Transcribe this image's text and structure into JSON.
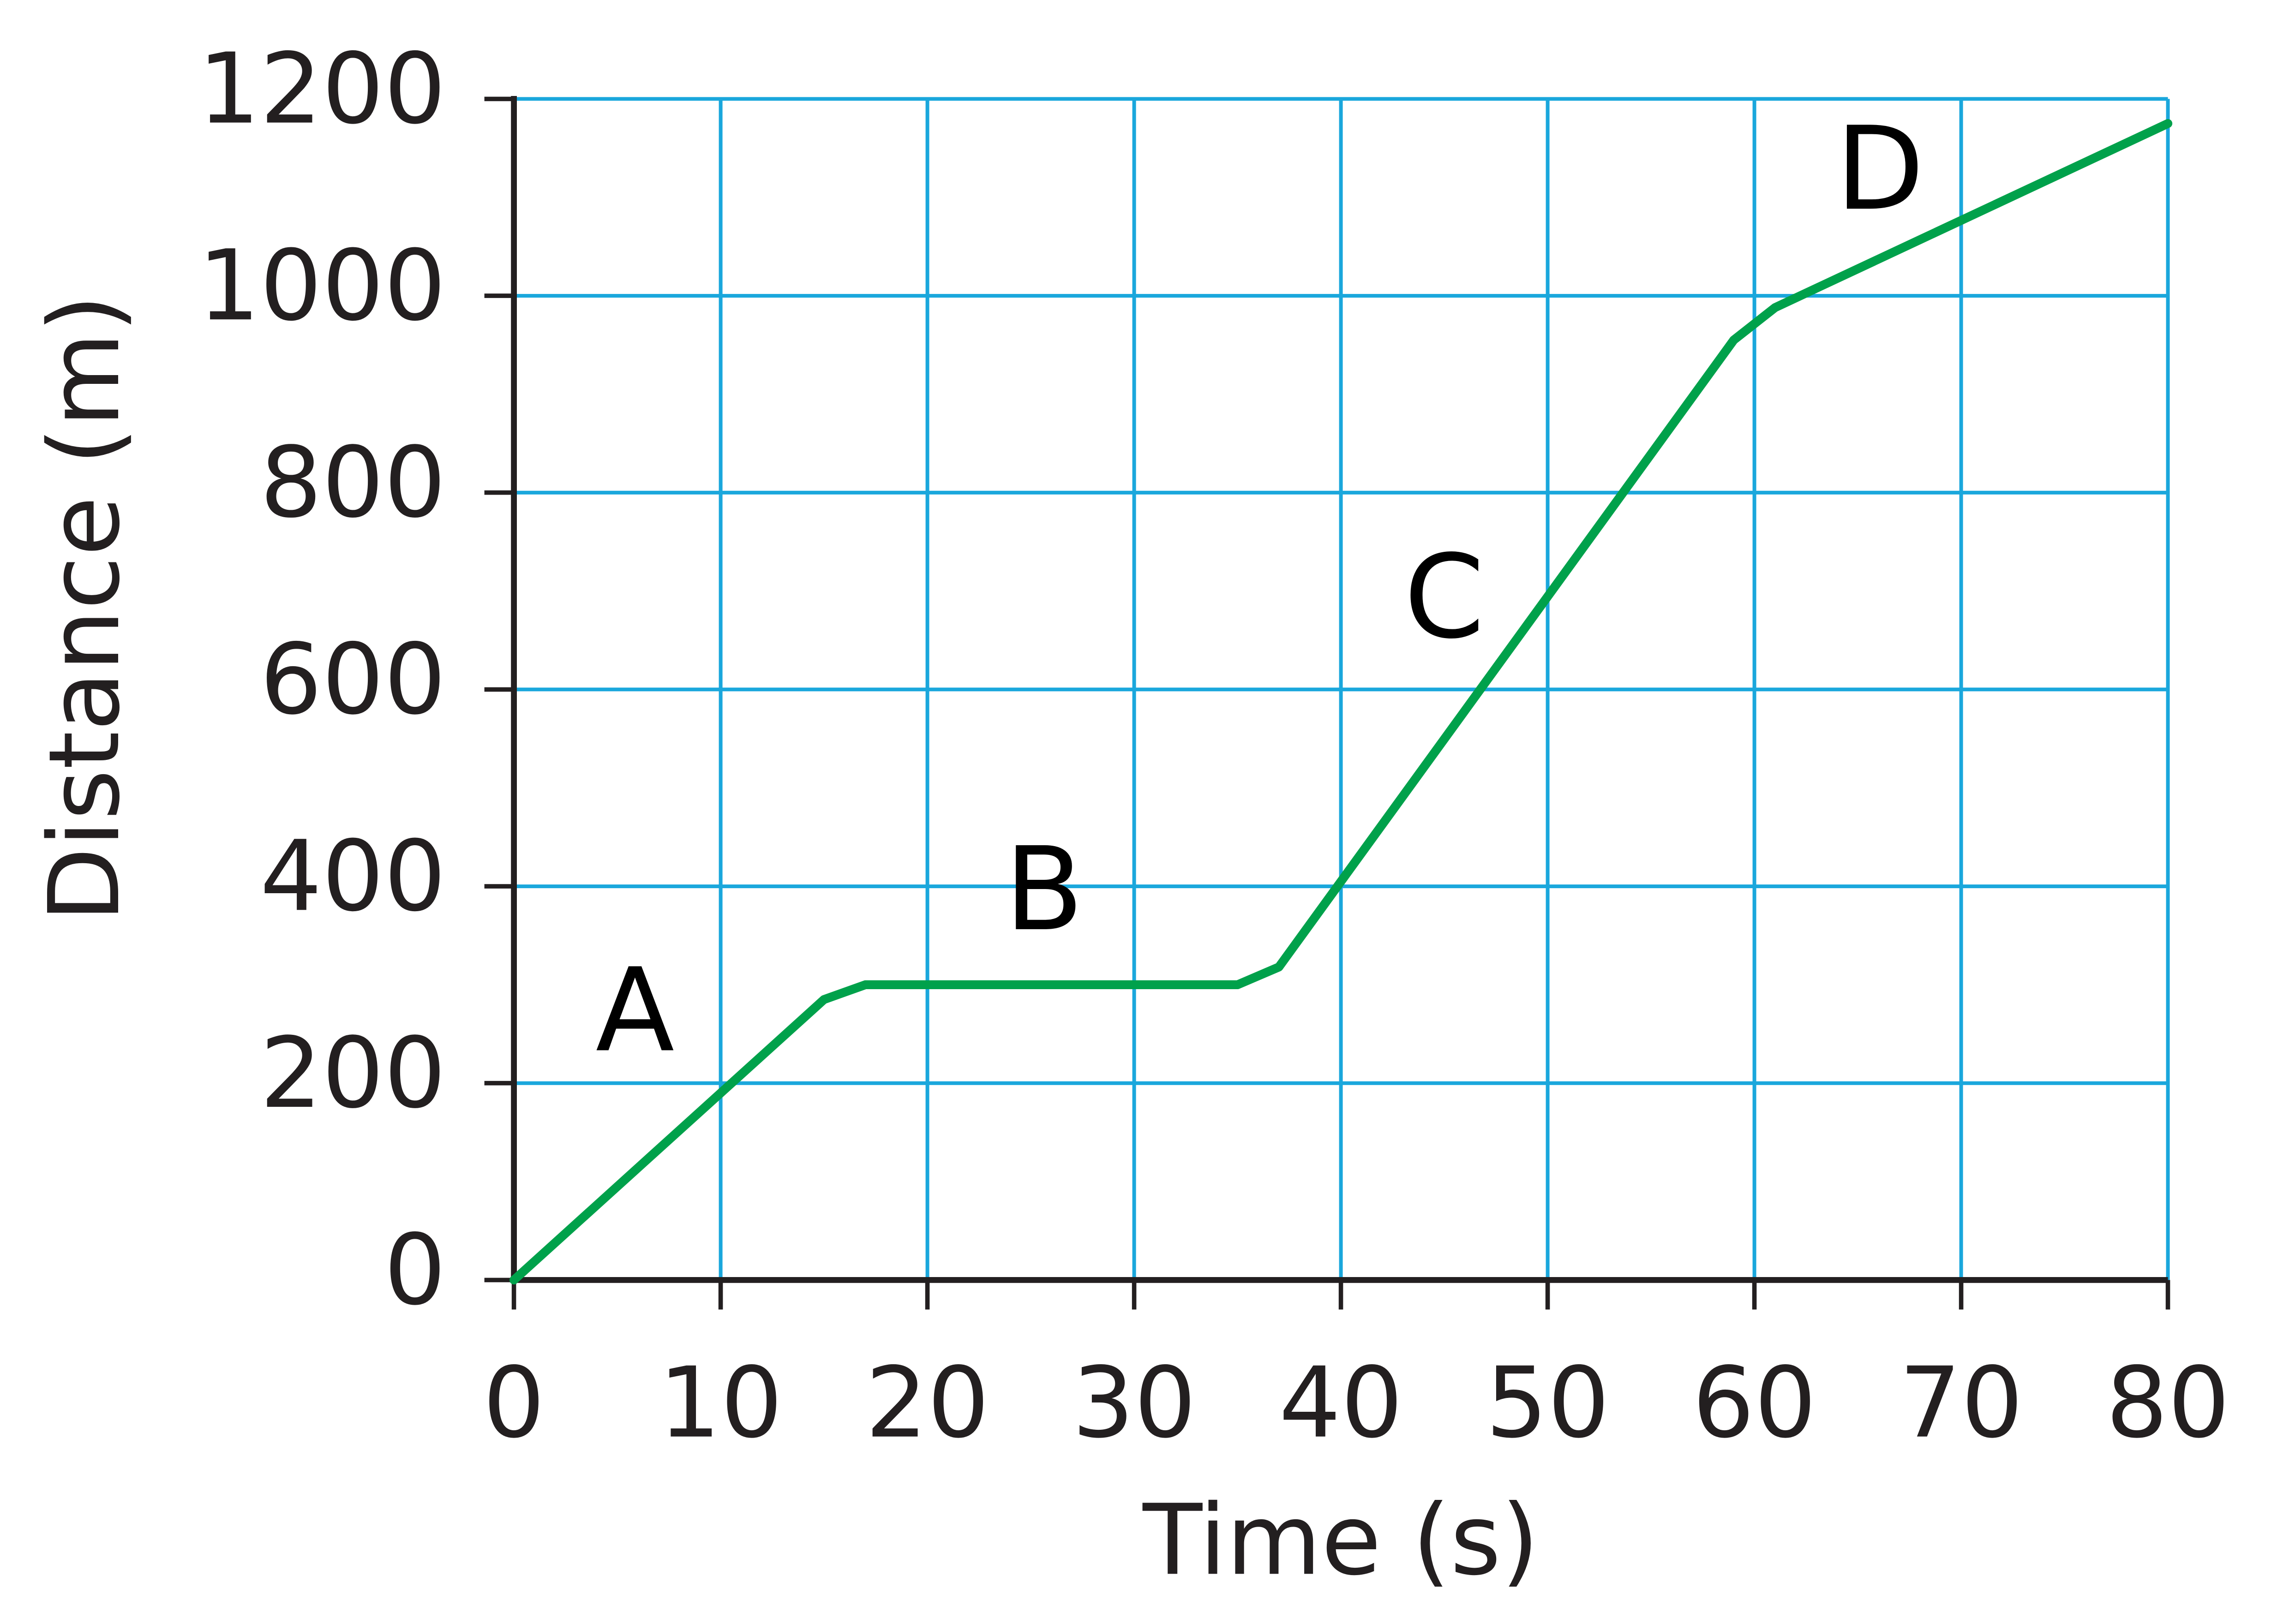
{
  "chart_data": {
    "type": "line",
    "xlabel": "Time (s)",
    "ylabel": "Distance (m)",
    "x": [
      0,
      15,
      17,
      35,
      37,
      59,
      61,
      80
    ],
    "values": [
      0,
      285,
      300,
      300,
      318,
      955,
      988,
      1175
    ],
    "color": "#00a14b",
    "xlim": [
      0,
      80
    ],
    "xticks": [
      0,
      10,
      20,
      30,
      40,
      50,
      60,
      70,
      80
    ],
    "ylim": [
      0,
      1200
    ],
    "yticks": [
      0,
      200,
      400,
      600,
      800,
      1000,
      1200
    ],
    "grid": true,
    "grid_color": "#1aa7dc",
    "annotations": [
      "A",
      "B",
      "C",
      "D"
    ]
  }
}
